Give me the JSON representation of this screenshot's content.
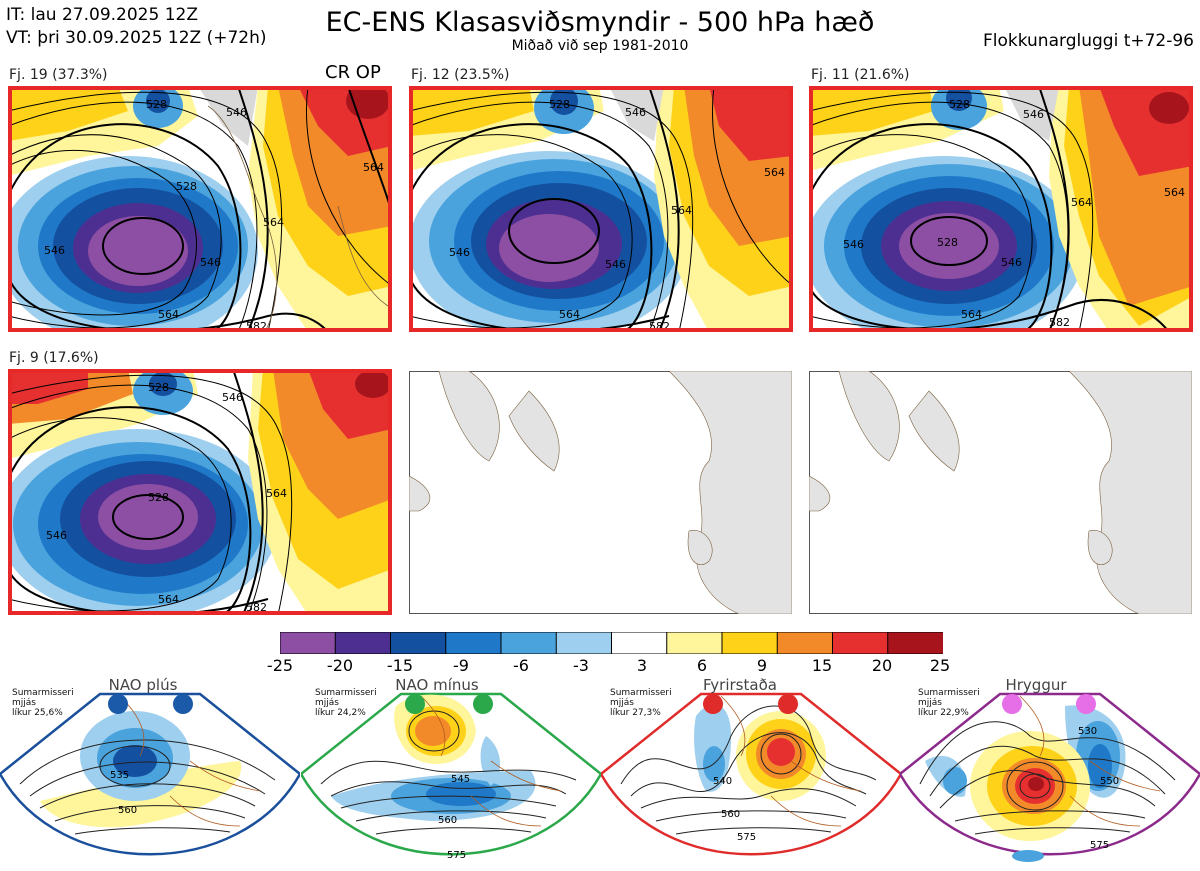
{
  "header": {
    "it_line": "IT: lau 27.09.2025 12Z",
    "vt_line": "VT: þri 30.09.2025 12Z  (+72h)",
    "title": "EC-ENS Klasasviðsmyndir - 500 hPa hæð",
    "subtitle": "Miðað við sep 1981-2010",
    "window": "Flokkunargluggi t+72-96"
  },
  "clusters": [
    {
      "label": "Fj. 19 (37.3%)",
      "tags": "CR OP",
      "contours": [
        "528",
        "528",
        "546",
        "546",
        "546",
        "564",
        "564",
        "564",
        "582"
      ]
    },
    {
      "label": "Fj. 12 (23.5%)",
      "tags": "",
      "contours": [
        "528",
        "546",
        "546",
        "546",
        "564",
        "564",
        "564",
        "582"
      ]
    },
    {
      "label": "Fj. 11 (21.6%)",
      "tags": "",
      "contours": [
        "528",
        "528",
        "546",
        "546",
        "546",
        "564",
        "564",
        "564",
        "582"
      ]
    },
    {
      "label": "Fj. 9 (17.6%)",
      "tags": "",
      "contours": [
        "528",
        "528",
        "546",
        "546",
        "564",
        "564",
        "582"
      ]
    }
  ],
  "colorbar": {
    "ticks": [
      "-25",
      "-20",
      "-15",
      "-9",
      "-6",
      "-3",
      "3",
      "6",
      "9",
      "15",
      "20",
      "25"
    ],
    "colors": [
      "#8c4fa3",
      "#4d2f91",
      "#1450a0",
      "#1f79c8",
      "#4aa3dd",
      "#9ecfee",
      "#ffffff",
      "#fff59a",
      "#ffd21a",
      "#f28a2a",
      "#e63030",
      "#a8141c"
    ]
  },
  "regimes": [
    {
      "name": "NAO plús",
      "note": [
        "Sumarmisseri",
        "mjjás",
        "líkur 25,6%"
      ],
      "contours": [
        "535",
        "560"
      ],
      "border": "#1a4f9c",
      "dot": "#1a5aa8"
    },
    {
      "name": "NAO mínus",
      "note": [
        "Sumarmisseri",
        "mjjás",
        "líkur 24,2%"
      ],
      "contours": [
        "545",
        "560",
        "575"
      ],
      "border": "#2aa84a",
      "dot": "#2aa84a"
    },
    {
      "name": "Fyrirstaða",
      "note": [
        "Sumarmisseri",
        "mjjás",
        "líkur 27,3%"
      ],
      "contours": [
        "540",
        "560",
        "575"
      ],
      "border": "#e02b2b",
      "dot": "#e02b2b"
    },
    {
      "name": "Hryggur",
      "note": [
        "Sumarmisseri",
        "mjjás",
        "líkur 22,9%"
      ],
      "contours": [
        "530",
        "550",
        "575"
      ],
      "border": "#8c2a8c",
      "dot": "#e66ee6"
    }
  ]
}
